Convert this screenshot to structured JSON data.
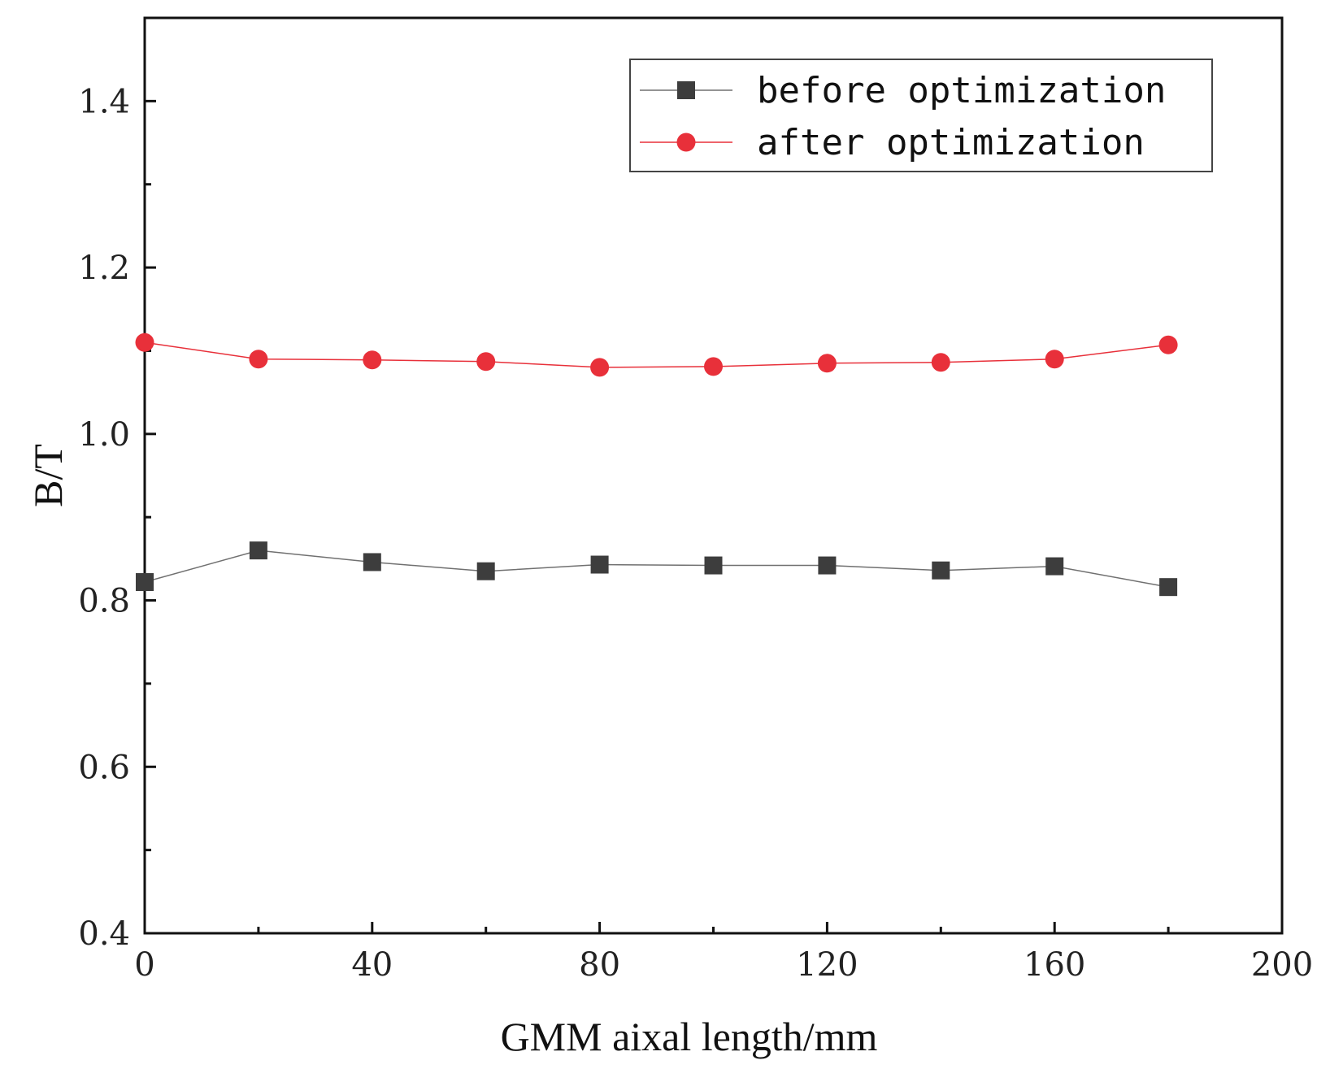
{
  "chart_data": {
    "type": "line",
    "title": "",
    "xlabel": "GMM aixal length/mm",
    "ylabel": "B/T",
    "xlim": [
      0,
      200
    ],
    "ylim": [
      0.4,
      1.5
    ],
    "xticks": [
      0,
      40,
      80,
      120,
      160,
      200
    ],
    "xtick_labels": [
      "0",
      "40",
      "80",
      "120",
      "160",
      "200"
    ],
    "yticks": [
      0.4,
      0.6,
      0.8,
      1.0,
      1.2,
      1.4
    ],
    "ytick_labels": [
      "0.4",
      "0.6",
      "0.8",
      "1.0",
      "1.2",
      "1.4"
    ],
    "grid": false,
    "legend_position": "top-right",
    "x": [
      0,
      20,
      40,
      60,
      80,
      100,
      120,
      140,
      160,
      180
    ],
    "series": [
      {
        "name": "before optimization",
        "marker": "square",
        "color": "#3d3d3d",
        "line_color": "#707070",
        "values": [
          0.822,
          0.86,
          0.846,
          0.835,
          0.843,
          0.842,
          0.842,
          0.836,
          0.841,
          0.816
        ]
      },
      {
        "name": "after optimization",
        "marker": "circle",
        "color": "#e8303a",
        "line_color": "#e8303a",
        "values": [
          1.11,
          1.09,
          1.089,
          1.087,
          1.08,
          1.081,
          1.085,
          1.086,
          1.09,
          1.107
        ]
      }
    ]
  }
}
